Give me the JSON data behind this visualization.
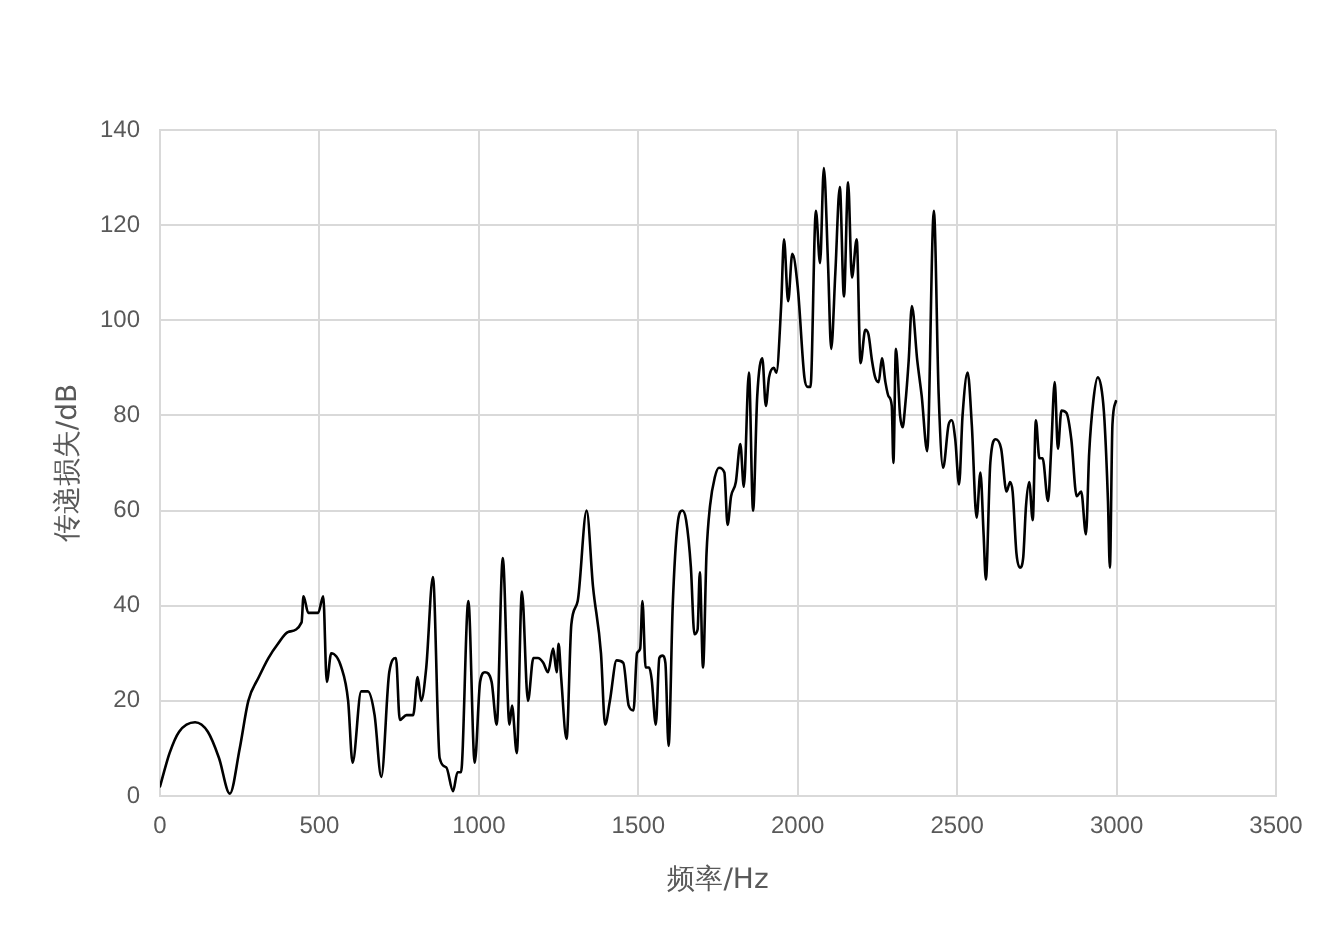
{
  "chart_data": {
    "type": "line",
    "xlabel": "频率/Hz",
    "ylabel": "传递损失/dB",
    "x": [
      0,
      30,
      60,
      110,
      150,
      185,
      219,
      250,
      277,
      310,
      340,
      370,
      402,
      444,
      450,
      465,
      496,
      512,
      523,
      537,
      569,
      590,
      604,
      631,
      652,
      673,
      694,
      719,
      740,
      752,
      773,
      794,
      808,
      819,
      835,
      856,
      877,
      898,
      919,
      933,
      944,
      967,
      987,
      1004,
      1019,
      1040,
      1056,
      1075,
      1096,
      1104,
      1119,
      1135,
      1154,
      1171,
      1185,
      1202,
      1217,
      1233,
      1244,
      1250,
      1258,
      1275,
      1290,
      1310,
      1338,
      1358,
      1383,
      1396,
      1411,
      1432,
      1453,
      1470,
      1485,
      1496,
      1506,
      1513,
      1523,
      1534,
      1542,
      1555,
      1566,
      1576,
      1585,
      1595,
      1608,
      1623,
      1638,
      1650,
      1665,
      1676,
      1686,
      1693,
      1703,
      1714,
      1725,
      1740,
      1753,
      1770,
      1780,
      1791,
      1806,
      1820,
      1831,
      1847,
      1860,
      1873,
      1889,
      1900,
      1910,
      1925,
      1933,
      1948,
      1957,
      1970,
      1983,
      2000,
      2021,
      2031,
      2040,
      2057,
      2070,
      2082,
      2095,
      2105,
      2118,
      2132,
      2145,
      2158,
      2170,
      2185,
      2197,
      2212,
      2222,
      2233,
      2243,
      2254,
      2264,
      2275,
      2285,
      2295,
      2300,
      2308,
      2321,
      2329,
      2337,
      2348,
      2358,
      2375,
      2389,
      2406,
      2427,
      2442,
      2456,
      2473,
      2483,
      2494,
      2506,
      2517,
      2533,
      2546,
      2561,
      2573,
      2583,
      2590,
      2604,
      2621,
      2638,
      2655,
      2666,
      2674,
      2686,
      2697,
      2707,
      2716,
      2726,
      2737,
      2747,
      2758,
      2768,
      2785,
      2795,
      2806,
      2816,
      2827,
      2843,
      2858,
      2875,
      2889,
      2904,
      2914,
      2927,
      2941,
      2954,
      2962,
      2973,
      2979,
      2987,
      2998
    ],
    "series": [
      {
        "color": "#000000",
        "values": [
          2,
          9,
          13.5,
          15.5,
          13.5,
          8,
          0.5,
          10,
          20,
          25,
          29,
          32,
          34.5,
          36.5,
          42,
          38.5,
          38.5,
          42,
          24,
          30,
          27,
          20,
          7,
          22,
          22,
          17,
          4,
          26,
          29,
          16,
          17,
          17,
          25,
          20,
          27,
          46,
          8,
          6,
          1,
          5,
          5,
          41,
          7,
          24,
          26,
          24,
          15,
          50,
          15,
          19,
          9,
          43,
          20,
          29,
          29,
          28,
          26,
          31,
          26,
          32,
          25,
          12,
          36,
          41,
          60,
          44,
          30,
          15,
          20,
          28.5,
          28,
          19,
          18,
          30,
          31,
          41,
          27,
          27,
          24.5,
          15,
          29,
          29.5,
          28,
          10.5,
          40,
          57,
          60,
          58,
          48,
          34,
          35,
          47,
          27,
          51,
          61,
          67,
          69,
          68,
          57,
          63,
          66,
          74,
          65,
          89,
          60,
          84,
          92,
          82,
          88,
          90,
          89,
          103,
          117,
          104,
          114,
          107,
          88,
          86,
          86,
          123,
          112,
          132,
          112,
          94,
          110,
          128,
          105,
          129,
          109,
          117,
          91,
          98,
          97,
          91.5,
          88,
          87,
          92,
          87,
          84,
          82,
          70,
          94,
          80,
          77.5,
          82,
          91.5,
          103,
          91.5,
          84,
          72.5,
          123,
          84.5,
          69,
          78,
          79,
          75,
          65.5,
          80,
          89,
          78,
          58.5,
          68,
          55,
          45.5,
          70,
          75,
          73,
          64,
          66,
          64,
          51,
          48,
          50,
          61,
          66,
          58,
          79,
          71,
          71,
          62,
          73,
          87,
          73,
          81,
          80.5,
          75,
          63,
          64,
          55,
          72,
          83,
          88,
          85,
          79,
          62,
          48,
          78,
          83
        ]
      }
    ],
    "xlim": [
      0,
      3500
    ],
    "xticks": [
      0,
      500,
      1000,
      1500,
      2000,
      2500,
      3000,
      3500
    ],
    "ylim": [
      0,
      140
    ],
    "yticks": [
      0,
      20,
      40,
      60,
      80,
      100,
      120,
      140
    ],
    "grid": true,
    "marker": "none",
    "line_style": "solid"
  }
}
